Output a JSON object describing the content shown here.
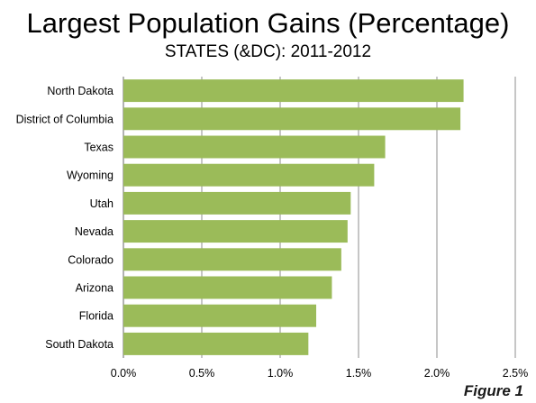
{
  "figure_label": "Figure 1",
  "chart_data": {
    "type": "bar",
    "orientation": "horizontal",
    "title": "Largest Population Gains (Percentage)",
    "subtitle": "STATES (&DC): 2011-2012",
    "categories": [
      "North Dakota",
      "District of Columbia",
      "Texas",
      "Wyoming",
      "Utah",
      "Nevada",
      "Colorado",
      "Arizona",
      "Florida",
      "South Dakota"
    ],
    "values": [
      2.17,
      2.15,
      1.67,
      1.6,
      1.45,
      1.43,
      1.39,
      1.33,
      1.23,
      1.18
    ],
    "xlim": [
      0,
      2.5
    ],
    "ticks": [
      0,
      0.5,
      1.0,
      1.5,
      2.0,
      2.5
    ],
    "tick_labels": [
      "0.0%",
      "0.5%",
      "1.0%",
      "1.5%",
      "2.0%",
      "2.5%"
    ],
    "xlabel": "",
    "ylabel": "",
    "grid": true,
    "bar_color": "#9bbb59",
    "grid_color": "#8c8c8c"
  }
}
